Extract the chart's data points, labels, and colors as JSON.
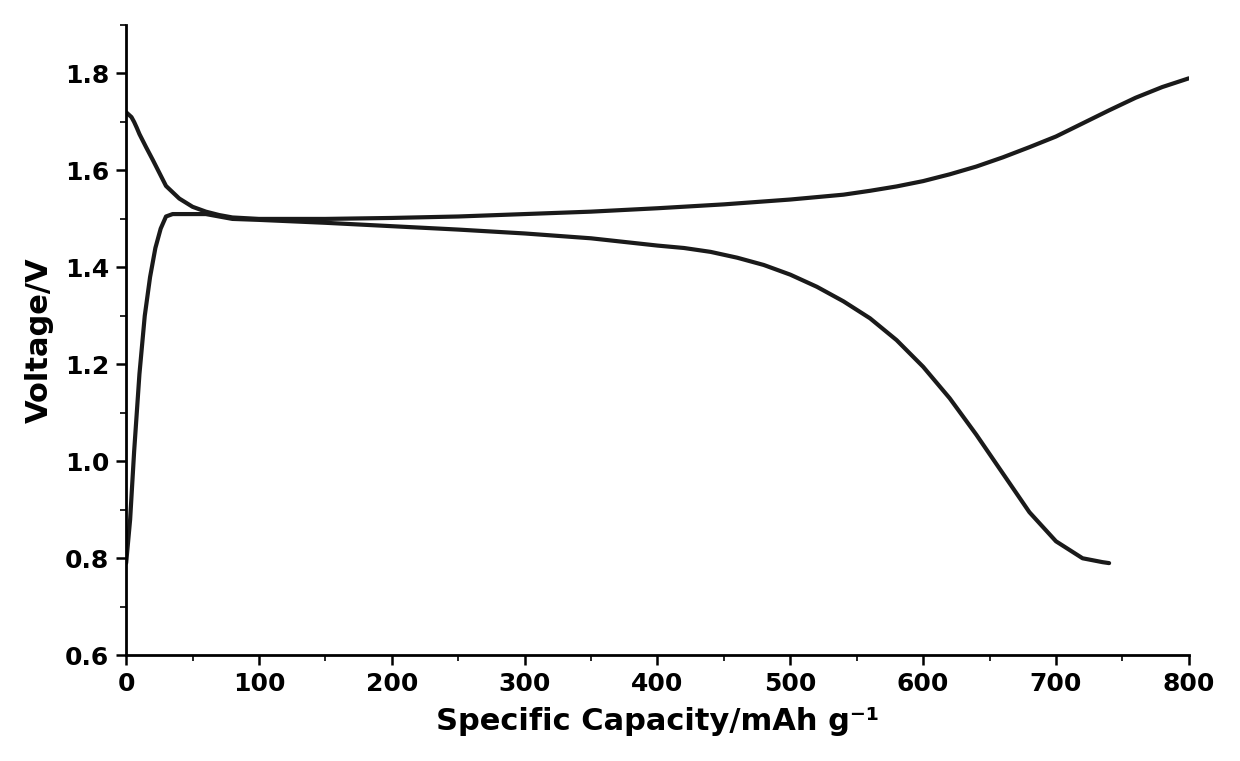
{
  "xlabel": "Specific Capacity/mAh g⁻¹",
  "ylabel": "Voltage/V",
  "xlim": [
    0,
    800
  ],
  "ylim": [
    0.6,
    1.9
  ],
  "xticks": [
    0,
    100,
    200,
    300,
    400,
    500,
    600,
    700,
    800
  ],
  "yticks": [
    0.6,
    0.8,
    1.0,
    1.2,
    1.4,
    1.6,
    1.8
  ],
  "line_color": "#1a1a1a",
  "line_width": 3.0,
  "background_color": "#ffffff",
  "charge_curve": {
    "x": [
      0,
      3,
      6,
      10,
      14,
      18,
      22,
      26,
      30,
      35,
      40,
      50,
      60,
      70,
      80,
      100,
      150,
      200,
      250,
      300,
      350,
      400,
      420,
      440,
      460,
      480,
      500,
      520,
      540,
      560,
      580,
      600,
      620,
      640,
      660,
      680,
      700,
      720,
      735,
      740
    ],
    "y": [
      0.79,
      0.88,
      1.02,
      1.18,
      1.3,
      1.38,
      1.44,
      1.48,
      1.505,
      1.51,
      1.51,
      1.51,
      1.51,
      1.505,
      1.5,
      1.498,
      1.492,
      1.485,
      1.478,
      1.47,
      1.46,
      1.445,
      1.44,
      1.432,
      1.42,
      1.405,
      1.385,
      1.36,
      1.33,
      1.295,
      1.25,
      1.195,
      1.13,
      1.055,
      0.975,
      0.895,
      0.835,
      0.8,
      0.792,
      0.79
    ]
  },
  "discharge_curve": {
    "x": [
      0,
      2,
      4,
      6,
      8,
      10,
      15,
      20,
      25,
      30,
      40,
      50,
      60,
      70,
      80,
      100,
      150,
      200,
      250,
      300,
      350,
      400,
      450,
      500,
      520,
      540,
      560,
      580,
      600,
      620,
      640,
      660,
      680,
      700,
      720,
      740,
      760,
      780,
      800
    ],
    "y": [
      1.72,
      1.715,
      1.71,
      1.7,
      1.688,
      1.675,
      1.648,
      1.622,
      1.595,
      1.568,
      1.542,
      1.525,
      1.515,
      1.508,
      1.503,
      1.5,
      1.5,
      1.502,
      1.505,
      1.51,
      1.515,
      1.522,
      1.53,
      1.54,
      1.545,
      1.55,
      1.558,
      1.567,
      1.578,
      1.592,
      1.608,
      1.627,
      1.648,
      1.67,
      1.697,
      1.724,
      1.75,
      1.772,
      1.79
    ]
  }
}
